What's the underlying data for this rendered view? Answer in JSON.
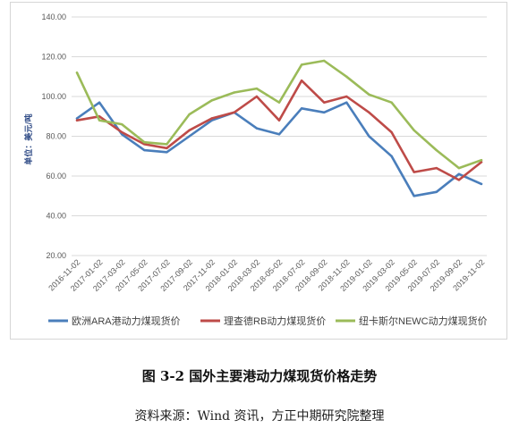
{
  "figure": {
    "caption": "图 3-2 国外主要港动力煤现货价格走势",
    "source": "资料来源：Wind 资讯，方正中期研究院整理"
  },
  "chart_data": {
    "type": "line",
    "ylabel": "单位：美元/吨",
    "ylim": [
      20,
      140
    ],
    "yticks": [
      "20.00",
      "40.00",
      "60.00",
      "80.00",
      "100.00",
      "120.00",
      "140.00"
    ],
    "ytick_values": [
      20,
      40,
      60,
      80,
      100,
      120,
      140
    ],
    "x": [
      "2016-11-02",
      "2017-01-02",
      "2017-03-02",
      "2017-05-02",
      "2017-07-02",
      "2017-09-02",
      "2017-11-02",
      "2018-01-02",
      "2018-03-02",
      "2018-05-02",
      "2018-07-02",
      "2018-09-02",
      "2018-11-02",
      "2019-01-02",
      "2019-03-02",
      "2019-05-02",
      "2019-07-02",
      "2019-09-02",
      "2019-11-02"
    ],
    "grid": "horizontal",
    "legend_position": "bottom",
    "series": [
      {
        "name": "欧洲ARA港动力煤现货价",
        "color": "#4a7ebb",
        "values": [
          89,
          97,
          81,
          73,
          72,
          80,
          88,
          92,
          84,
          81,
          94,
          92,
          97,
          80,
          70,
          50,
          52,
          61,
          56
        ]
      },
      {
        "name": "理查德RB动力煤现货价",
        "color": "#be4b48",
        "values": [
          88,
          90,
          82,
          76,
          74,
          83,
          89,
          92,
          100,
          88,
          108,
          97,
          100,
          92,
          82,
          62,
          64,
          58,
          67
        ]
      },
      {
        "name": "纽卡斯尔NEWC动力煤现货价",
        "color": "#9bbb59",
        "values": [
          112,
          88,
          86,
          77,
          76,
          91,
          98,
          102,
          104,
          97,
          116,
          118,
          110,
          101,
          97,
          83,
          73,
          64,
          68
        ]
      }
    ]
  }
}
